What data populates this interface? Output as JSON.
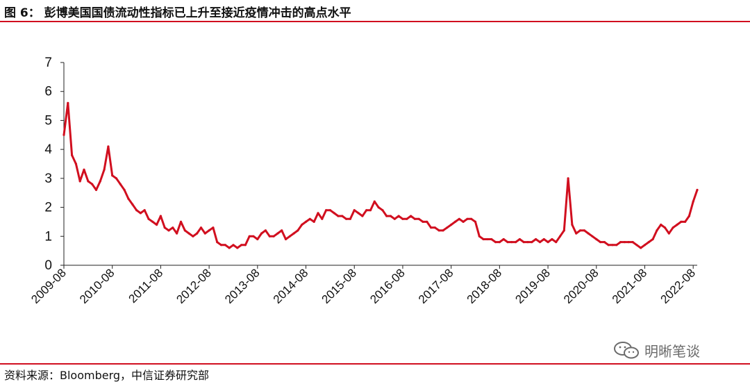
{
  "figure": {
    "title": "图 6：  彭博美国国债流动性指标已上升至接近疫情冲击的高点水平",
    "source": "资料来源：Bloomberg，中信证券研究部",
    "watermark": "明晰笔谈"
  },
  "colors": {
    "accent": "#d10f1f",
    "line": "#d10f1f",
    "axis": "#222222"
  },
  "chart_data": {
    "type": "line",
    "title": "",
    "xlabel": "",
    "ylabel": "",
    "ylim": [
      0,
      7
    ],
    "yticks": [
      0,
      1,
      2,
      3,
      4,
      5,
      6,
      7
    ],
    "xlim": [
      "2009-08",
      "2022-09"
    ],
    "xticks": [
      "2009-08",
      "2010-08",
      "2011-08",
      "2012-08",
      "2013-08",
      "2014-08",
      "2015-08",
      "2016-08",
      "2017-08",
      "2018-08",
      "2019-08",
      "2020-08",
      "2021-08",
      "2022-08"
    ],
    "grid": false,
    "legend": "none",
    "series": [
      {
        "name": "",
        "x": [
          "2009-08",
          "2009-09",
          "2009-10",
          "2009-11",
          "2009-12",
          "2010-01",
          "2010-02",
          "2010-03",
          "2010-04",
          "2010-05",
          "2010-06",
          "2010-07",
          "2010-08",
          "2010-09",
          "2010-10",
          "2010-11",
          "2010-12",
          "2011-01",
          "2011-02",
          "2011-03",
          "2011-04",
          "2011-05",
          "2011-06",
          "2011-07",
          "2011-08",
          "2011-09",
          "2011-10",
          "2011-11",
          "2011-12",
          "2012-01",
          "2012-02",
          "2012-03",
          "2012-04",
          "2012-05",
          "2012-06",
          "2012-07",
          "2012-08",
          "2012-09",
          "2012-10",
          "2012-11",
          "2012-12",
          "2013-01",
          "2013-02",
          "2013-03",
          "2013-04",
          "2013-05",
          "2013-06",
          "2013-07",
          "2013-08",
          "2013-09",
          "2013-10",
          "2013-11",
          "2013-12",
          "2014-01",
          "2014-02",
          "2014-03",
          "2014-04",
          "2014-05",
          "2014-06",
          "2014-07",
          "2014-08",
          "2014-09",
          "2014-10",
          "2014-11",
          "2014-12",
          "2015-01",
          "2015-02",
          "2015-03",
          "2015-04",
          "2015-05",
          "2015-06",
          "2015-07",
          "2015-08",
          "2015-09",
          "2015-10",
          "2015-11",
          "2015-12",
          "2016-01",
          "2016-02",
          "2016-03",
          "2016-04",
          "2016-05",
          "2016-06",
          "2016-07",
          "2016-08",
          "2016-09",
          "2016-10",
          "2016-11",
          "2016-12",
          "2017-01",
          "2017-02",
          "2017-03",
          "2017-04",
          "2017-05",
          "2017-06",
          "2017-07",
          "2017-08",
          "2017-09",
          "2017-10",
          "2017-11",
          "2017-12",
          "2018-01",
          "2018-02",
          "2018-03",
          "2018-04",
          "2018-05",
          "2018-06",
          "2018-07",
          "2018-08",
          "2018-09",
          "2018-10",
          "2018-11",
          "2018-12",
          "2019-01",
          "2019-02",
          "2019-03",
          "2019-04",
          "2019-05",
          "2019-06",
          "2019-07",
          "2019-08",
          "2019-09",
          "2019-10",
          "2019-11",
          "2019-12",
          "2020-01",
          "2020-02",
          "2020-03",
          "2020-04",
          "2020-05",
          "2020-06",
          "2020-07",
          "2020-08",
          "2020-09",
          "2020-10",
          "2020-11",
          "2020-12",
          "2021-01",
          "2021-02",
          "2021-03",
          "2021-04",
          "2021-05",
          "2021-06",
          "2021-07",
          "2021-08",
          "2021-09",
          "2021-10",
          "2021-11",
          "2021-12",
          "2022-01",
          "2022-02",
          "2022-03",
          "2022-04",
          "2022-05",
          "2022-06",
          "2022-07",
          "2022-08",
          "2022-09"
        ],
        "values": [
          4.5,
          5.6,
          3.8,
          3.5,
          2.9,
          3.3,
          2.9,
          2.8,
          2.6,
          2.9,
          3.3,
          4.1,
          3.1,
          3.0,
          2.8,
          2.6,
          2.3,
          2.1,
          1.9,
          1.8,
          1.9,
          1.6,
          1.5,
          1.4,
          1.7,
          1.3,
          1.2,
          1.3,
          1.1,
          1.5,
          1.2,
          1.1,
          1.0,
          1.1,
          1.3,
          1.1,
          1.2,
          1.3,
          0.8,
          0.7,
          0.7,
          0.6,
          0.7,
          0.6,
          0.7,
          0.7,
          1.0,
          1.0,
          0.9,
          1.1,
          1.2,
          1.0,
          1.0,
          1.1,
          1.2,
          0.9,
          1.0,
          1.1,
          1.2,
          1.4,
          1.5,
          1.6,
          1.5,
          1.8,
          1.6,
          1.9,
          1.9,
          1.8,
          1.7,
          1.7,
          1.6,
          1.6,
          1.9,
          1.8,
          1.7,
          1.9,
          1.9,
          2.2,
          2.0,
          1.9,
          1.7,
          1.7,
          1.6,
          1.7,
          1.6,
          1.6,
          1.7,
          1.6,
          1.6,
          1.5,
          1.5,
          1.3,
          1.3,
          1.2,
          1.2,
          1.3,
          1.4,
          1.5,
          1.6,
          1.5,
          1.6,
          1.6,
          1.5,
          1.0,
          0.9,
          0.9,
          0.9,
          0.8,
          0.8,
          0.9,
          0.8,
          0.8,
          0.8,
          0.9,
          0.8,
          0.8,
          0.8,
          0.9,
          0.8,
          0.9,
          0.8,
          0.9,
          0.8,
          1.0,
          1.2,
          3.0,
          1.4,
          1.1,
          1.2,
          1.2,
          1.1,
          1.0,
          0.9,
          0.8,
          0.8,
          0.7,
          0.7,
          0.7,
          0.8,
          0.8,
          0.8,
          0.8,
          0.7,
          0.6,
          0.7,
          0.8,
          0.9,
          1.2,
          1.4,
          1.3,
          1.1,
          1.3,
          1.4,
          1.5,
          1.5,
          1.7,
          2.2,
          2.6
        ]
      }
    ]
  }
}
